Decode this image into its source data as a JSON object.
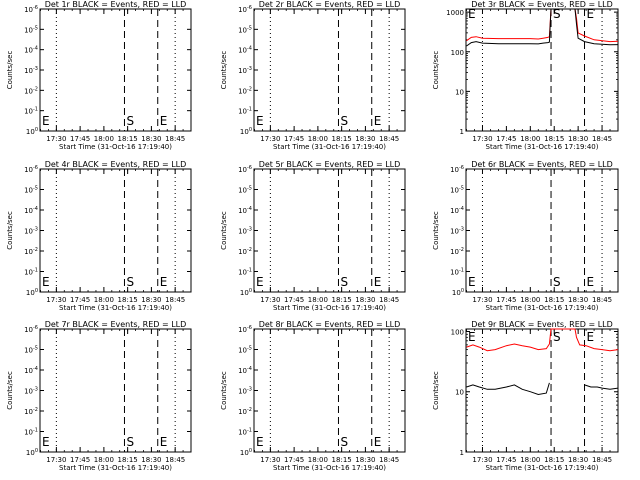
{
  "panels": [
    {
      "title": "Det 1r BLACK = Events, RED = LLD",
      "ylabel": "Counts/sec",
      "xlabel": "Start Time (31-Oct-16 17:19:40)",
      "xticks": [
        "17:30",
        "17:45",
        "18:00",
        "18:15",
        "18:30",
        "18:45"
      ],
      "yticks": [
        "10^0",
        "10^-1",
        "10^-2",
        "10^-3",
        "10^-4",
        "10^-5",
        "10^-6"
      ],
      "markers": {
        "left": "E",
        "s": "S",
        "e": "E"
      }
    },
    {
      "title": "Det 2r BLACK = Events, RED = LLD",
      "ylabel": "Counts/sec",
      "xlabel": "Start Time (31-Oct-16 17:19:40)",
      "xticks": [
        "17:30",
        "17:45",
        "18:00",
        "18:15",
        "18:30",
        "18:45"
      ],
      "yticks": [
        "10^0",
        "10^-1",
        "10^-2",
        "10^-3",
        "10^-4",
        "10^-5",
        "10^-6"
      ],
      "markers": {
        "left": "E",
        "s": "S",
        "e": "E"
      }
    },
    {
      "title": "Det 3r BLACK = Events, RED = LLD",
      "ylabel": "Counts/sec",
      "xlabel": "Start Time (31-Oct-16 17:19:40)",
      "xticks": [
        "17:30",
        "17:45",
        "18:00",
        "18:15",
        "18:30",
        "18:45"
      ],
      "yticks": [
        "1",
        "10",
        "100",
        "1000"
      ],
      "markers": {
        "left": "E",
        "s": "S",
        "e": "E"
      }
    },
    {
      "title": "Det 4r BLACK = Events, RED = LLD",
      "ylabel": "Counts/sec",
      "xlabel": "Start Time (31-Oct-16 17:19:40)",
      "xticks": [
        "17:30",
        "17:45",
        "18:00",
        "18:15",
        "18:30",
        "18:45"
      ],
      "yticks": [
        "10^0",
        "10^-1",
        "10^-2",
        "10^-3",
        "10^-4",
        "10^-5",
        "10^-6"
      ],
      "markers": {
        "left": "E",
        "s": "S",
        "e": "E"
      }
    },
    {
      "title": "Det 5r BLACK = Events, RED = LLD",
      "ylabel": "Counts/sec",
      "xlabel": "Start Time (31-Oct-16 17:19:40)",
      "xticks": [
        "17:30",
        "17:45",
        "18:00",
        "18:15",
        "18:30",
        "18:45"
      ],
      "yticks": [
        "10^0",
        "10^-1",
        "10^-2",
        "10^-3",
        "10^-4",
        "10^-5",
        "10^-6"
      ],
      "markers": {
        "left": "E",
        "s": "S",
        "e": "E"
      }
    },
    {
      "title": "Det 6r BLACK = Events, RED = LLD",
      "ylabel": "Counts/sec",
      "xlabel": "Start Time (31-Oct-16 17:19:40)",
      "xticks": [
        "17:30",
        "17:45",
        "18:00",
        "18:15",
        "18:30",
        "18:45"
      ],
      "yticks": [
        "10^0",
        "10^-1",
        "10^-2",
        "10^-3",
        "10^-4",
        "10^-5",
        "10^-6"
      ],
      "markers": {
        "left": "E",
        "s": "S",
        "e": "E"
      }
    },
    {
      "title": "Det 7r BLACK = Events, RED = LLD",
      "ylabel": "Counts/sec",
      "xlabel": "Start Time (31-Oct-16 17:19:40)",
      "xticks": [
        "17:30",
        "17:45",
        "18:00",
        "18:15",
        "18:30",
        "18:45"
      ],
      "yticks": [
        "10^0",
        "10^-1",
        "10^-2",
        "10^-3",
        "10^-4",
        "10^-5",
        "10^-6"
      ],
      "markers": {
        "left": "E",
        "s": "S",
        "e": "E"
      }
    },
    {
      "title": "Det 8r BLACK = Events, RED = LLD",
      "ylabel": "Counts/sec",
      "xlabel": "Start Time (31-Oct-16 17:19:40)",
      "xticks": [
        "17:30",
        "17:45",
        "18:00",
        "18:15",
        "18:30",
        "18:45"
      ],
      "yticks": [
        "10^0",
        "10^-1",
        "10^-2",
        "10^-3",
        "10^-4",
        "10^-5",
        "10^-6"
      ],
      "markers": {
        "left": "E",
        "s": "S",
        "e": "E"
      }
    },
    {
      "title": "Det 9r BLACK = Events, RED = LLD",
      "ylabel": "Counts/sec",
      "xlabel": "Start Time (31-Oct-16 17:19:40)",
      "xticks": [
        "17:30",
        "17:45",
        "18:00",
        "18:15",
        "18:30",
        "18:45"
      ],
      "yticks": [
        "1",
        "10",
        "100"
      ],
      "markers": {
        "left": "E",
        "s": "S",
        "e": "E"
      }
    }
  ],
  "colors": {
    "events": "#000000",
    "lld": "#ff0000",
    "axes": "#000000",
    "background": "#ffffff"
  },
  "chart_data": [
    {
      "type": "line",
      "title": "Det 1r BLACK = Events, RED = LLD",
      "xlabel": "Start Time (31-Oct-16 17:19:40)",
      "ylabel": "Counts/sec",
      "x_range": [
        "17:19:40",
        "18:55"
      ],
      "ylim": [
        1e-06,
        1
      ],
      "log_y": true,
      "vlines": {
        "dotted": [
          "17:30",
          "18:45"
        ],
        "dashed": [
          "18:13",
          "18:34"
        ]
      },
      "series": []
    },
    {
      "type": "line",
      "title": "Det 2r BLACK = Events, RED = LLD",
      "xlabel": "Start Time (31-Oct-16 17:19:40)",
      "ylabel": "Counts/sec",
      "x_range": [
        "17:19:40",
        "18:55"
      ],
      "ylim": [
        1e-06,
        1
      ],
      "log_y": true,
      "vlines": {
        "dotted": [
          "17:30",
          "18:45"
        ],
        "dashed": [
          "18:13",
          "18:34"
        ]
      },
      "series": []
    },
    {
      "type": "line",
      "title": "Det 3r BLACK = Events, RED = LLD",
      "xlabel": "Start Time (31-Oct-16 17:19:40)",
      "ylabel": "Counts/sec",
      "x_range": [
        "17:19:40",
        "18:55"
      ],
      "ylim": [
        1,
        1200
      ],
      "log_y": true,
      "vlines": {
        "dotted": [
          "17:30",
          "18:45"
        ],
        "dashed": [
          "18:13",
          "18:34"
        ]
      },
      "series": [
        {
          "color": "#ff0000",
          "points": [
            [
              "17:20",
              190
            ],
            [
              "17:23",
              230
            ],
            [
              "17:26",
              240
            ],
            [
              "17:30",
              220
            ],
            [
              "17:40",
              215
            ],
            [
              "17:50",
              215
            ],
            [
              "18:00",
              215
            ],
            [
              "18:05",
              210
            ],
            [
              "18:08",
              220
            ],
            [
              "18:11",
              230
            ],
            [
              "18:12",
              240
            ],
            [
              "18:13",
              1200
            ],
            [
              "18:20",
              1200
            ],
            [
              "18:28",
              1200
            ],
            [
              "18:29",
              700
            ],
            [
              "18:30",
              300
            ],
            [
              "18:34",
              250
            ],
            [
              "18:40",
              200
            ],
            [
              "18:50",
              180
            ],
            [
              "18:55",
              185
            ]
          ]
        },
        {
          "color": "#000000",
          "points": [
            [
              "17:20",
              140
            ],
            [
              "17:23",
              170
            ],
            [
              "17:26",
              180
            ],
            [
              "17:30",
              165
            ],
            [
              "17:40",
              160
            ],
            [
              "17:50",
              160
            ],
            [
              "18:00",
              160
            ],
            [
              "18:05",
              158
            ],
            [
              "18:08",
              165
            ],
            [
              "18:11",
              170
            ],
            [
              "18:12",
              175
            ],
            [
              "18:13",
              1200
            ],
            [
              "18:20",
              1200
            ],
            [
              "18:28",
              1200
            ],
            [
              "18:29",
              500
            ],
            [
              "18:30",
              220
            ],
            [
              "18:34",
              180
            ],
            [
              "18:40",
              160
            ],
            [
              "18:50",
              150
            ],
            [
              "18:55",
              152
            ]
          ]
        }
      ]
    },
    {
      "type": "line",
      "title": "Det 4r BLACK = Events, RED = LLD",
      "xlabel": "Start Time (31-Oct-16 17:19:40)",
      "ylabel": "Counts/sec",
      "x_range": [
        "17:19:40",
        "18:55"
      ],
      "ylim": [
        1e-06,
        1
      ],
      "log_y": true,
      "vlines": {
        "dotted": [
          "17:30",
          "18:45"
        ],
        "dashed": [
          "18:13",
          "18:34"
        ]
      },
      "series": []
    },
    {
      "type": "line",
      "title": "Det 5r BLACK = Events, RED = LLD",
      "xlabel": "Start Time (31-Oct-16 17:19:40)",
      "ylabel": "Counts/sec",
      "x_range": [
        "17:19:40",
        "18:55"
      ],
      "ylim": [
        1e-06,
        1
      ],
      "log_y": true,
      "vlines": {
        "dotted": [
          "17:30",
          "18:45"
        ],
        "dashed": [
          "18:13",
          "18:34"
        ]
      },
      "series": []
    },
    {
      "type": "line",
      "title": "Det 6r BLACK = Events, RED = LLD",
      "xlabel": "Start Time (31-Oct-16 17:19:40)",
      "ylabel": "Counts/sec",
      "x_range": [
        "17:19:40",
        "18:55"
      ],
      "ylim": [
        1e-06,
        1
      ],
      "log_y": true,
      "vlines": {
        "dotted": [
          "17:30",
          "18:45"
        ],
        "dashed": [
          "18:13",
          "18:34"
        ]
      },
      "series": []
    },
    {
      "type": "line",
      "title": "Det 7r BLACK = Events, RED = LLD",
      "xlabel": "Start Time (31-Oct-16 17:19:40)",
      "ylabel": "Counts/sec",
      "x_range": [
        "17:19:40",
        "18:55"
      ],
      "ylim": [
        1e-06,
        1
      ],
      "log_y": true,
      "vlines": {
        "dotted": [
          "17:30",
          "18:45"
        ],
        "dashed": [
          "18:13",
          "18:34"
        ]
      },
      "series": []
    },
    {
      "type": "line",
      "title": "Det 8r BLACK = Events, RED = LLD",
      "xlabel": "Start Time (31-Oct-16 17:19:40)",
      "ylabel": "Counts/sec",
      "x_range": [
        "17:19:40",
        "18:55"
      ],
      "ylim": [
        1e-06,
        1
      ],
      "log_y": true,
      "vlines": {
        "dotted": [
          "17:30",
          "18:45"
        ],
        "dashed": [
          "18:13",
          "18:34"
        ]
      },
      "series": []
    },
    {
      "type": "line",
      "title": "Det 9r BLACK = Events, RED = LLD",
      "xlabel": "Start Time (31-Oct-16 17:19:40)",
      "ylabel": "Counts/sec",
      "x_range": [
        "17:19:40",
        "18:55"
      ],
      "ylim": [
        1,
        110
      ],
      "log_y": true,
      "vlines": {
        "dotted": [
          "17:30",
          "18:45"
        ],
        "dashed": [
          "18:13",
          "18:34"
        ]
      },
      "series": [
        {
          "color": "#ff0000",
          "points": [
            [
              "17:20",
              55
            ],
            [
              "17:24",
              60
            ],
            [
              "17:28",
              55
            ],
            [
              "17:33",
              48
            ],
            [
              "17:38",
              50
            ],
            [
              "17:45",
              58
            ],
            [
              "17:50",
              62
            ],
            [
              "17:55",
              58
            ],
            [
              "18:00",
              55
            ],
            [
              "18:05",
              50
            ],
            [
              "18:10",
              52
            ],
            [
              "18:12",
              62
            ],
            [
              "18:13",
              110
            ],
            [
              "18:20",
              110
            ],
            [
              "18:28",
              110
            ],
            [
              "18:29",
              80
            ],
            [
              "18:31",
              60
            ],
            [
              "18:35",
              58
            ],
            [
              "18:40",
              52
            ],
            [
              "18:45",
              50
            ],
            [
              "18:50",
              48
            ],
            [
              "18:55",
              50
            ]
          ]
        },
        {
          "color": "#000000",
          "points": [
            [
              "17:20",
              12
            ],
            [
              "17:24",
              13
            ],
            [
              "17:28",
              12
            ],
            [
              "17:33",
              11
            ],
            [
              "17:38",
              11
            ],
            [
              "17:45",
              12
            ],
            [
              "17:50",
              13
            ],
            [
              "17:55",
              11
            ],
            [
              "18:00",
              10
            ],
            [
              "18:05",
              9
            ],
            [
              "18:10",
              9.5
            ],
            [
              "18:12",
              14
            ]
          ]
        },
        {
          "color": "#000000",
          "points": [
            [
              "18:34",
              13
            ],
            [
              "18:38",
              12
            ],
            [
              "18:42",
              12
            ],
            [
              "18:45",
              11.5
            ],
            [
              "18:50",
              11
            ],
            [
              "18:55",
              11.5
            ]
          ]
        }
      ]
    }
  ]
}
